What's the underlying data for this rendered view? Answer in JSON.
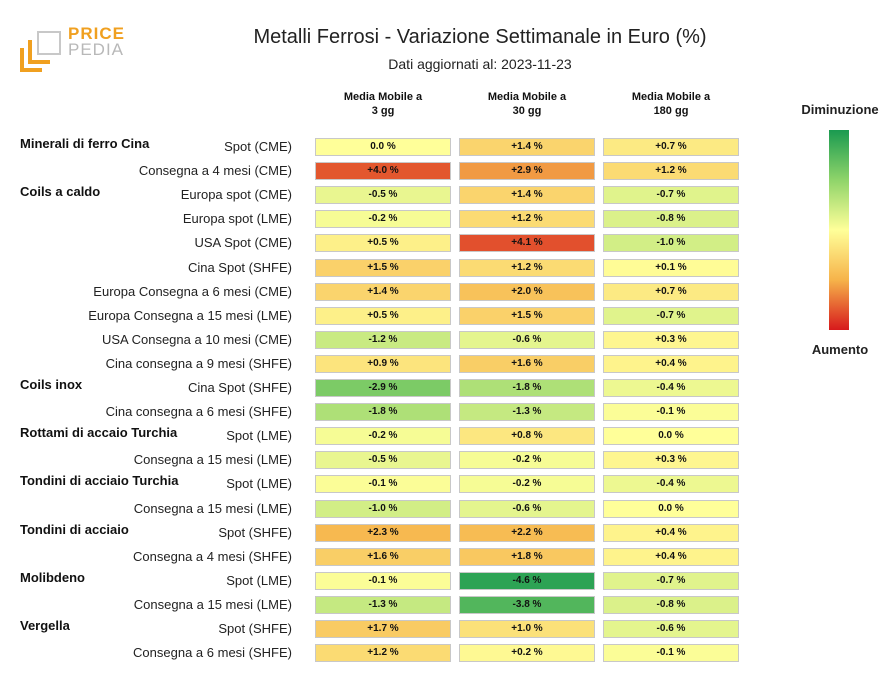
{
  "logo": {
    "line1": "PRICE",
    "line2": "PEDIA"
  },
  "colors": {
    "neutral": "#ffff99",
    "increase_mid": "#f6b34a",
    "increase_max": "#d7191c",
    "decrease_mid": "#8fd46a",
    "decrease_max": "#1a9a50"
  },
  "chart_data": {
    "type": "heatmap",
    "title": "Metalli Ferrosi - Variazione Settimanale in Euro (%)",
    "subtitle": "Dati aggiornati al: 2023-11-23",
    "columns": [
      "Media Mobile a\n3 gg",
      "Media Mobile a\n30 gg",
      "Media Mobile a\n180 gg"
    ],
    "legend": {
      "top": "Diminuzione",
      "bottom": "Aumento"
    },
    "rows": [
      {
        "group": "Minerali di ferro Cina",
        "label": "Spot (CME)",
        "values": [
          "0.0 %",
          "+1.4 %",
          "+0.7 %"
        ]
      },
      {
        "group": "",
        "label": "Consegna a 4 mesi (CME)",
        "values": [
          "+4.0 %",
          "+2.9 %",
          "+1.2 %"
        ]
      },
      {
        "group": "Coils a caldo",
        "label": "Europa spot (CME)",
        "values": [
          "-0.5 %",
          "+1.4 %",
          "-0.7 %"
        ]
      },
      {
        "group": "",
        "label": "Europa spot (LME)",
        "values": [
          "-0.2 %",
          "+1.2 %",
          "-0.8 %"
        ]
      },
      {
        "group": "",
        "label": "USA Spot (CME)",
        "values": [
          "+0.5 %",
          "+4.1 %",
          "-1.0 %"
        ]
      },
      {
        "group": "",
        "label": "Cina Spot (SHFE)",
        "values": [
          "+1.5 %",
          "+1.2 %",
          "+0.1 %"
        ]
      },
      {
        "group": "",
        "label": "Europa Consegna a 6 mesi (CME)",
        "values": [
          "+1.4 %",
          "+2.0 %",
          "+0.7 %"
        ]
      },
      {
        "group": "",
        "label": "Europa Consegna a 15 mesi (LME)",
        "values": [
          "+0.5 %",
          "+1.5 %",
          "-0.7 %"
        ]
      },
      {
        "group": "",
        "label": "USA Consegna a 10 mesi (CME)",
        "values": [
          "-1.2 %",
          "-0.6 %",
          "+0.3 %"
        ]
      },
      {
        "group": "",
        "label": "Cina consegna a 9 mesi (SHFE)",
        "values": [
          "+0.9 %",
          "+1.6 %",
          "+0.4 %"
        ]
      },
      {
        "group": "Coils inox",
        "label": "Cina Spot (SHFE)",
        "values": [
          "-2.9 %",
          "-1.8 %",
          "-0.4 %"
        ]
      },
      {
        "group": "",
        "label": "Cina consegna a 6 mesi (SHFE)",
        "values": [
          "-1.8 %",
          "-1.3 %",
          "-0.1 %"
        ]
      },
      {
        "group": "Rottami di accaio Turchia",
        "label": "Spot (LME)",
        "values": [
          "-0.2 %",
          "+0.8 %",
          "0.0 %"
        ]
      },
      {
        "group": "",
        "label": "Consegna a 15 mesi (LME)",
        "values": [
          "-0.5 %",
          "-0.2 %",
          "+0.3 %"
        ]
      },
      {
        "group": "Tondini di acciaio Turchia",
        "label": "Spot (LME)",
        "values": [
          "-0.1 %",
          "-0.2 %",
          "-0.4 %"
        ]
      },
      {
        "group": "",
        "label": "Consegna a 15 mesi (LME)",
        "values": [
          "-1.0 %",
          "-0.6 %",
          "0.0 %"
        ]
      },
      {
        "group": "Tondini di acciaio",
        "label": "Spot (SHFE)",
        "values": [
          "+2.3 %",
          "+2.2 %",
          "+0.4 %"
        ]
      },
      {
        "group": "",
        "label": "Consegna a 4 mesi (SHFE)",
        "values": [
          "+1.6 %",
          "+1.8 %",
          "+0.4 %"
        ]
      },
      {
        "group": "Molibdeno",
        "label": "Spot (LME)",
        "values": [
          "-0.1 %",
          "-4.6 %",
          "-0.7 %"
        ]
      },
      {
        "group": "",
        "label": "Consegna a 15 mesi (LME)",
        "values": [
          "-1.3 %",
          "-3.8 %",
          "-0.8 %"
        ]
      },
      {
        "group": "Vergella",
        "label": "Spot (SHFE)",
        "values": [
          "+1.7 %",
          "+1.0 %",
          "-0.6 %"
        ]
      },
      {
        "group": "",
        "label": "Consegna a 6 mesi (SHFE)",
        "values": [
          "+1.2 %",
          "+0.2 %",
          "-0.1 %"
        ]
      }
    ]
  }
}
